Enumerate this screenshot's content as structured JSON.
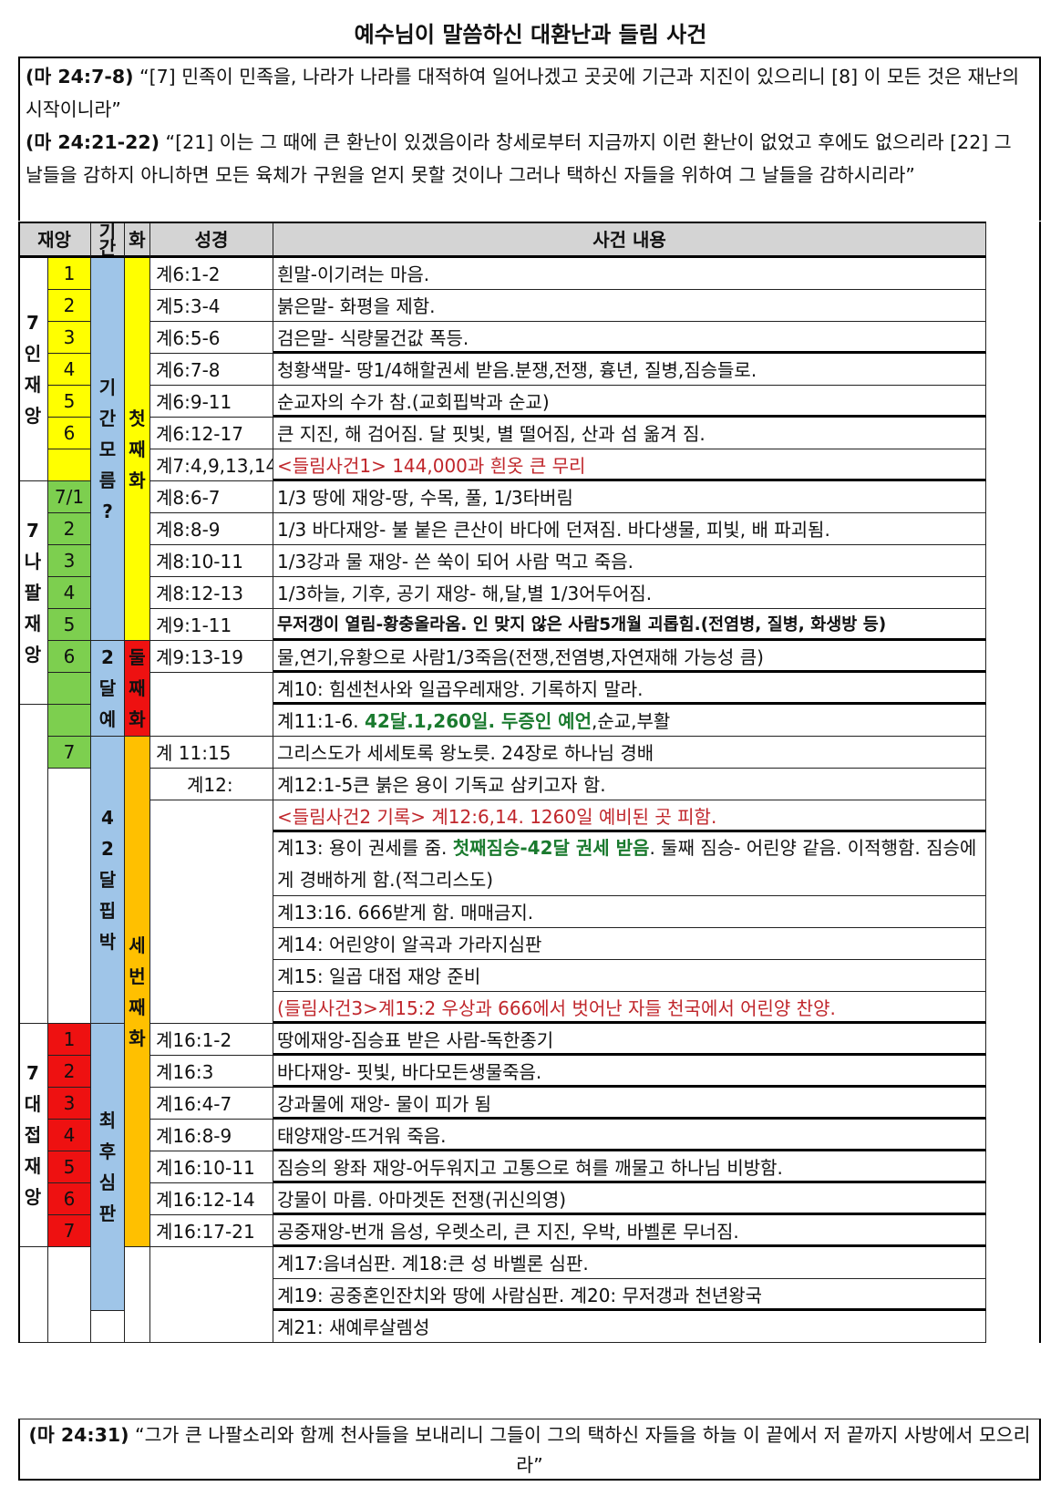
{
  "title": "예수님이 말씀하신 대환난과 들림 사건",
  "intro": {
    "q1_ref": "(마 24:7-8)",
    "q1_text": " “[7] 민족이 민족을, 나라가 나라를 대적하여 일어나겠고 곳곳에 기근과 지진이 있으리니  [8] 이 모든 것은 재난의 시작이니라”",
    "q2_ref": "(마 24:21-22)",
    "q2_text": " “[21] 이는 그 때에 큰 환난이 있겠음이라 창세로부터 지금까지 이런 환난이 없었고 후에도 없으리라 [22] 그 날들을 감하지 아니하면 모든 육체가 구원을 얻지 못할 것이나 그러나 택하신 자들을 위하여 그 날들을 감하시리라”"
  },
  "headers": {
    "disaster": "재앙",
    "period": "기간",
    "woe": "화",
    "scripture": "성경",
    "event": "사건 내용"
  },
  "groups": {
    "seals": "7인재앙",
    "trumpets": "7나팔재앙",
    "bowls": "7대접재앙"
  },
  "periods": {
    "unknown": "기간모름?",
    "m42a": "42달예언",
    "m42b": "42달핍박",
    "final": "최후심판"
  },
  "woes": {
    "first": "첫째화",
    "second": "둘째화",
    "third": "세번째화"
  },
  "colors": {
    "yellow": "#ffff00",
    "green": "#7dcf4f",
    "red": "#ee1111",
    "blue": "#9fc5e8",
    "orange": "#ffc000",
    "header": "#d4d4d4"
  },
  "rows": [
    {
      "num": "1",
      "ref": "계6:1-2",
      "event": "흰말-이기려는 마음."
    },
    {
      "num": "2",
      "ref": "계5:3-4",
      "event": "붉은말- 화평을 제함."
    },
    {
      "num": "3",
      "ref": "계6:5-6",
      "event": "검은말- 식량물건값 폭등."
    },
    {
      "num": "4",
      "ref": "계6:7-8",
      "event": "청황색말- 땅1/4해할권세 받음.분쟁,전쟁, 흉년, 질병,짐승들로."
    },
    {
      "num": "5",
      "ref": "계6:9-11",
      "event": "순교자의 수가 참.(교회핍박과 순교)"
    },
    {
      "num": "6",
      "ref": "계6:12-17",
      "event": "큰 지진, 해 검어짐. 달 핏빛, 별 떨어짐, 산과 섬 옮겨 짐."
    },
    {
      "num": "",
      "ref": "계7:4,9,13,14",
      "event": "<들림사건1> 144,000과 흰옷 큰 무리"
    },
    {
      "num": "7/1",
      "ref": "계8:6-7",
      "event": "1/3 땅에 재앙-땅, 수목, 풀, 1/3타버림"
    },
    {
      "num": "2",
      "ref": "계8:8-9",
      "event": "1/3 바다재앙- 불 붙은 큰산이 바다에 던져짐. 바다생물, 피빛, 배 파괴됨."
    },
    {
      "num": "3",
      "ref": "계8:10-11",
      "event": "1/3강과 물 재앙- 쓴 쑥이 되어 사람 먹고  죽음."
    },
    {
      "num": "4",
      "ref": "계8:12-13",
      "event": "1/3하늘, 기후, 공기 재앙- 해,달,별 1/3어두어짐."
    },
    {
      "num": "5",
      "ref": "계9:1-11",
      "event": "무저갱이 열림-황충올라옴. 인 맞지 않은 사람5개월 괴롭힘.(전염병, 질병, 화생방 등)"
    },
    {
      "num": "6",
      "ref": "계9:13-19",
      "event": "물,연기,유황으로 사람1/3죽음(전쟁,전염병,자연재해 가능성 큼)"
    },
    {
      "num": "",
      "ref": "",
      "event": "계10: 힘센천사와 일곱우레재앙. 기록하지 말라."
    },
    {
      "num": "",
      "ref": "",
      "event_a": "계11:1-6. ",
      "event_b": "42달.1,260일. 두증인 예언",
      "event_c": ",순교,부활"
    },
    {
      "num": "7",
      "ref": "계 11:15",
      "event": "그리스도가 세세토록 왕노릇. 24장로 하나님 경배"
    },
    {
      "num": "",
      "ref": "계12:",
      "event": "계12:1-5큰 붉은 용이 기독교 삼키고자 함."
    },
    {
      "num": "",
      "ref": "",
      "event": "<들림사건2 기록> 계12:6,14. 1260일 예비된 곳 피함."
    },
    {
      "num": "",
      "ref": "",
      "event_a": "계13: 용이 권세를 줌. ",
      "event_b": "첫째짐승-42달 권세 받음",
      "event_c": ". 둘째 짐승- 어린양 같음. 이적행함. 짐승에게 경배하게 함.(적그리스도)"
    },
    {
      "num": "",
      "ref": "",
      "event": "계13:16.  666받게 함. 매매금지."
    },
    {
      "num": "",
      "ref": "",
      "event": "계14: 어린양이 알곡과 가라지심판"
    },
    {
      "num": "",
      "ref": "",
      "event": "계15: 일곱 대접 재앙 준비"
    },
    {
      "num": "",
      "ref": "",
      "event": "(들림사건3>계15:2 우상과 666에서 벗어난 자들 천국에서 어린양 찬양."
    },
    {
      "num": "1",
      "ref": "계16:1-2",
      "event": "땅에재앙-짐승표 받은 사람-독한종기"
    },
    {
      "num": "2",
      "ref": "계16:3",
      "event": "바다재앙- 핏빛, 바다모든생물죽음."
    },
    {
      "num": "3",
      "ref": "계16:4-7",
      "event": "강과물에 재앙- 물이 피가 됨"
    },
    {
      "num": "4",
      "ref": "계16:8-9",
      "event": "태양재앙-뜨거워 죽음."
    },
    {
      "num": "5",
      "ref": "계16:10-11",
      "event": "짐승의 왕좌 재앙-어두워지고 고통으로 혀를 깨물고 하나님 비방함."
    },
    {
      "num": "6",
      "ref": "계16:12-14",
      "event": "강물이 마름. 아마겟돈 전쟁(귀신의영)"
    },
    {
      "num": "7",
      "ref": "계16:17-21",
      "event": "공중재앙-번개 음성, 우렛소리, 큰 지진, 우박, 바벨론 무너짐."
    },
    {
      "num": "",
      "ref": "",
      "event": "계17:음녀심판.   계18:큰 성 바벨론 심판."
    },
    {
      "num": "",
      "ref": "",
      "event": "계19: 공중혼인잔치와 땅에 사람심판.  계20: 무저갱과 천년왕국"
    },
    {
      "num": "",
      "ref": "",
      "event": "계21: 새예루살렘성"
    }
  ],
  "footer": {
    "ref": "(마 24:31)",
    "text": " “그가 큰 나팔소리와 함께 천사들을 보내리니 그들이 그의 택하신 자들을 하늘 이 끝에서 저 끝까지 사방에서 모으리라”"
  }
}
